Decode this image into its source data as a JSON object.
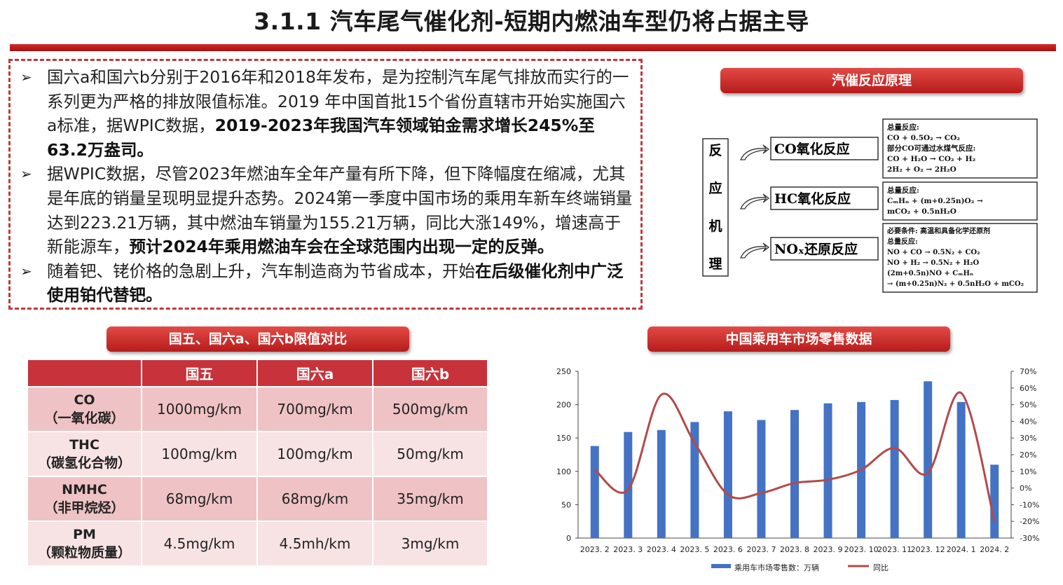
{
  "title": "3.1.1 汽车尾气催化剂-短期内燃油车型仍将占据主导",
  "bullets": {
    "b1_a": "国六a和国六b分别于2016年和2018年发布，是为控制汽车尾气排放而实行的一系列更为严格的排放限值标准。2019 年中国首批15个省份直辖市开始实施国六a标准，据WPIC数据，",
    "b1_b": "2019-2023年我国汽车领域铂金需求增长245%至 63.2万盎司。",
    "b2_a": "据WPIC数据，尽管2023年燃油车全年产量有所下降，但下降幅度在缩减，尤其是年底的销量呈现明显提升态势。2024第一季度中国市场的乘用车新车终端销量达到223.21万辆，其中燃油车销量为155.21万辆，同比大涨149%，增速高于新能源车，",
    "b2_b": "预计2024年乘用燃油车会在全球范围内出现一定的反弹。",
    "b3_a": "随着钯、铑价格的急剧上升，汽车制造商为节省成本，开始",
    "b3_b": "在后级催化剂中广泛使用铂代替钯。"
  },
  "mechanism": {
    "header": "汽催反应原理",
    "side_chars": [
      "反",
      "应",
      "机",
      "理"
    ],
    "reactions": [
      {
        "label": "CO氧化反应",
        "lines": [
          "总量反应:",
          "CO + 0.5O₂ → CO₂",
          "部分CO可通过水煤气反应:",
          "CO + H₂O → CO₂ + H₂",
          "2H₂ + O₂ → 2H₂O"
        ]
      },
      {
        "label": "HC氧化反应",
        "lines": [
          "总量反应:",
          "CₘHₙ + (m+0.25n)O₂ →",
          "mCO₂ + 0.5nH₂O"
        ]
      },
      {
        "label": "NOₓ还原反应",
        "lines": [
          "必要条件: 高温和具备化学还原剂",
          "总量反应:",
          "NO + CO → 0.5N₂ + CO₂",
          "NO + H₂ → 0.5N₂ + H₂O",
          "(2m+0.5n)NO + CₘHₙ",
          "→ (m+0.25n)N₂ + 0.5nH₂O + mCO₂"
        ]
      }
    ]
  },
  "limits": {
    "header": "国五、国六a、国六b限值对比",
    "columns": [
      "",
      "国五",
      "国六a",
      "国六b"
    ],
    "rows": [
      {
        "name": "CO",
        "sub": "（一氧化碳）",
        "values": [
          "1000mg/km",
          "700mg/km",
          "500mg/km"
        ]
      },
      {
        "name": "THC",
        "sub": "（碳氢化合物）",
        "values": [
          "100mg/km",
          "100mg/km",
          "50mg/km"
        ]
      },
      {
        "name": "NMHC",
        "sub": "（非甲烷烃）",
        "values": [
          "68mg/km",
          "68mg/km",
          "35mg/km"
        ]
      },
      {
        "name": "PM",
        "sub": "（颗粒物质量）",
        "values": [
          "4.5mg/km",
          "4.5mh/km",
          "3mg/km"
        ]
      }
    ]
  },
  "chart_header": "中国乘用车市场零售数据",
  "chart_data": {
    "type": "bar+line",
    "categories": [
      "2023. 2",
      "2023. 3",
      "2023. 4",
      "2023. 5",
      "2023. 6",
      "2023. 7",
      "2023. 8",
      "2023. 9",
      "2023. 10",
      "2023. 11",
      "2023. 12",
      "2024. 1",
      "2024. 2"
    ],
    "x_tick_labels": [
      "2023. 2",
      "2023. 3",
      "2023. 4",
      "2023. 5",
      "2023. 6",
      "2023. 7",
      "2023. 8",
      "2023. 9",
      "2023. 10",
      "2023. 11",
      "2023. 12",
      "2024. 1",
      "2024. 2"
    ],
    "series": [
      {
        "name": "乘用车市场零售数：万辆",
        "type": "bar",
        "axis": "left",
        "values": [
          138,
          159,
          162,
          174,
          190,
          177,
          192,
          202,
          204,
          207,
          235,
          204,
          110
        ]
      },
      {
        "name": "同比",
        "type": "line",
        "axis": "right",
        "values": [
          11,
          -1,
          56,
          27,
          -4,
          -3,
          3,
          5,
          11,
          24,
          9,
          57,
          -20
        ]
      }
    ],
    "y_left": {
      "min": 0,
      "max": 250,
      "ticks": [
        0,
        50,
        100,
        150,
        200,
        250
      ]
    },
    "y_right": {
      "min": -30,
      "max": 70,
      "ticks": [
        "-30%",
        "-20%",
        "-10%",
        "0%",
        "10%",
        "20%",
        "30%",
        "40%",
        "50%",
        "60%",
        "70%"
      ]
    },
    "legend_position": "bottom",
    "colors": {
      "bar": "#4472c4",
      "line": "#b24a4a"
    }
  }
}
